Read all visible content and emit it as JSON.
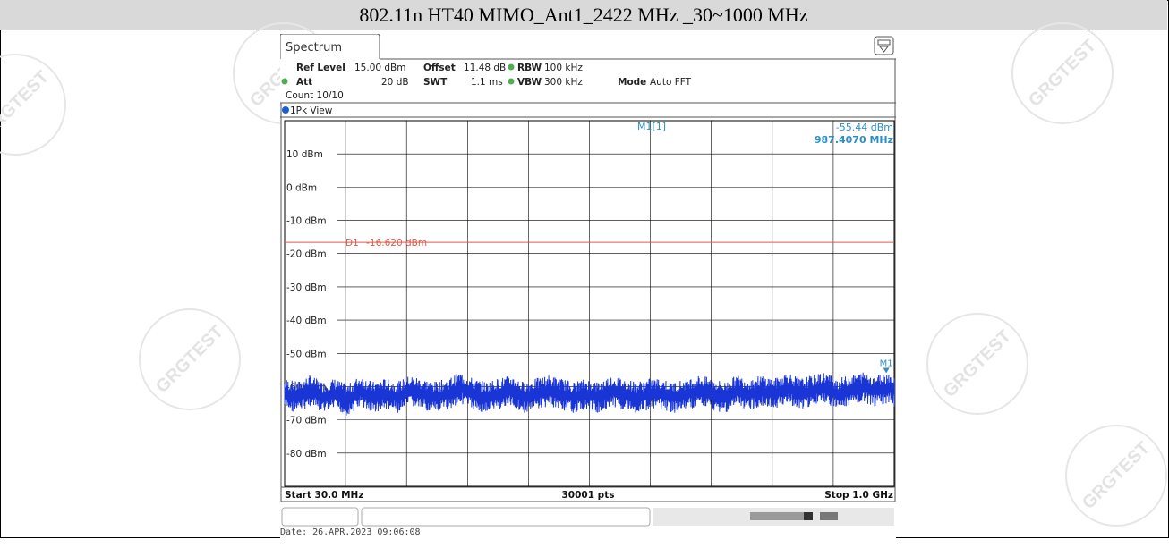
{
  "page_title": "802.11n HT40 MIMO_Ant1_2422 MHz _30~1000 MHz",
  "watermark": "GRGTEST",
  "analyzer": {
    "tab_label": "Spectrum",
    "settings": {
      "ref_level_label": "Ref Level",
      "ref_level_value": "15.00 dBm",
      "offset_label": "Offset",
      "offset_value": "11.48 dB",
      "rbw_label": "RBW",
      "rbw_value": "100 kHz",
      "att_label": "Att",
      "att_value": "20 dB",
      "swt_label": "SWT",
      "swt_value": "1.1 ms",
      "vbw_label": "VBW",
      "vbw_value": "300 kHz",
      "mode_label": "Mode",
      "mode_value": "Auto FFT",
      "count_text": "Count 10/10"
    },
    "view_label": "1Pk View",
    "marker_label": "M1[1]",
    "marker_level": "-55.44 dBm",
    "marker_freq": "987.4070 MHz",
    "marker_tag": "M1",
    "start_label": "Start 30.0 MHz",
    "points_label": "30001 pts",
    "stop_label": "Stop 1.0 GHz",
    "date_text": "Date: 26.APR.2023  09:06:08",
    "colors": {
      "trace": "#1a35d6",
      "limit": "#e05a4a",
      "marker": "#2a8fc8",
      "grid": "#000000"
    }
  },
  "chart_data": {
    "type": "line",
    "x_unit": "MHz",
    "y_unit": "dBm",
    "xlim": [
      30,
      1000
    ],
    "ylim": [
      -90,
      20
    ],
    "yticks": [
      {
        "value": 10,
        "label": "10 dBm"
      },
      {
        "value": 0,
        "label": "0 dBm"
      },
      {
        "value": -10,
        "label": "-10 dBm"
      },
      {
        "value": -20,
        "label": "-20 dBm"
      },
      {
        "value": -30,
        "label": "-30 dBm"
      },
      {
        "value": -40,
        "label": "-40 dBm"
      },
      {
        "value": -50,
        "label": "-50 dBm"
      },
      {
        "value": -60,
        "label": "-60 dBm"
      },
      {
        "value": -70,
        "label": "-70 dBm"
      },
      {
        "value": -80,
        "label": "-80 dBm"
      }
    ],
    "x_divisions": 10,
    "limit_line": {
      "label": "D1",
      "value_text": "-16.620 dBm",
      "value": -16.62
    },
    "marker": {
      "x": 987.407,
      "y": -55.44
    },
    "grid": true,
    "series": [
      {
        "x": [
          30,
          50,
          70,
          90,
          110,
          130,
          150,
          170,
          190,
          210,
          230,
          250,
          270,
          290,
          310,
          330,
          350,
          370,
          390,
          410,
          430,
          450,
          470,
          490,
          510,
          530,
          550,
          570,
          590,
          610,
          630,
          650,
          670,
          690,
          710,
          730,
          750,
          770,
          790,
          810,
          830,
          850,
          870,
          890,
          910,
          930,
          950,
          970,
          990,
          1000
        ],
        "y": [
          -62,
          -63,
          -61,
          -63,
          -62,
          -64,
          -61,
          -63,
          -62,
          -63,
          -61,
          -62,
          -63,
          -62,
          -60,
          -62,
          -63,
          -62,
          -61,
          -63,
          -62,
          -61,
          -62,
          -63,
          -62,
          -63,
          -61,
          -62,
          -63,
          -62,
          -62,
          -63,
          -62,
          -61,
          -62,
          -63,
          -61,
          -62,
          -61,
          -62,
          -60,
          -62,
          -61,
          -60,
          -62,
          -61,
          -60,
          -61,
          -60,
          -61
        ]
      }
    ]
  }
}
